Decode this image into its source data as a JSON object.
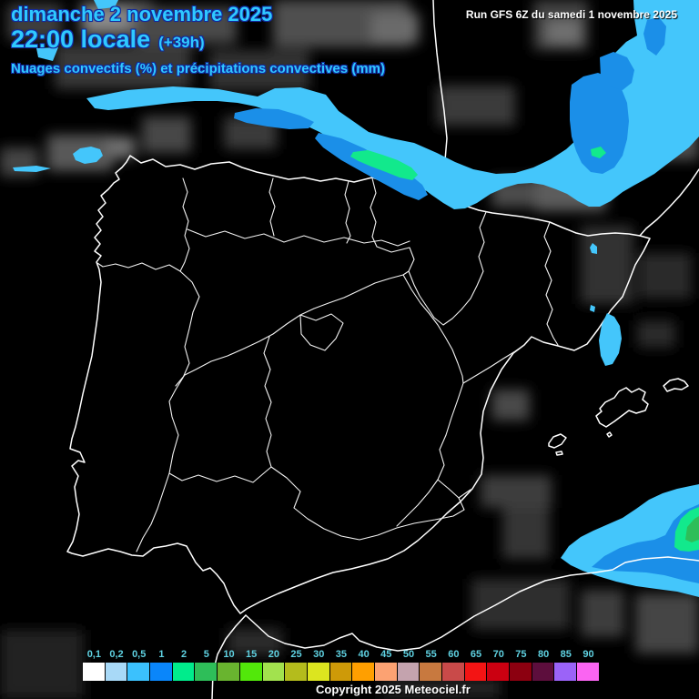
{
  "header": {
    "date_line": "dimanche 2 novembre 2025",
    "time_line": "22:00 locale",
    "offset_label": "(+39h)",
    "subtitle": "Nuages convectifs (%) et précipitations convectives (mm)"
  },
  "run_info": {
    "label": "Run GFS 6Z du samedi 1 novembre 2025"
  },
  "footer": {
    "copyright": "Copyright 2025 Meteociel.fr"
  },
  "legend": {
    "scale": [
      {
        "label": "0,1",
        "color": "#FFFFFF"
      },
      {
        "label": "0,2",
        "color": "#A8D9F7"
      },
      {
        "label": "0,5",
        "color": "#3BC1FD"
      },
      {
        "label": "1",
        "color": "#0A86FA"
      },
      {
        "label": "2",
        "color": "#00EC8C"
      },
      {
        "label": "5",
        "color": "#2EBE59"
      },
      {
        "label": "10",
        "color": "#69B42F"
      },
      {
        "label": "15",
        "color": "#52E80A"
      },
      {
        "label": "20",
        "color": "#A2E24E"
      },
      {
        "label": "25",
        "color": "#B4BC1C"
      },
      {
        "label": "30",
        "color": "#DCE51F"
      },
      {
        "label": "35",
        "color": "#CE9A08"
      },
      {
        "label": "40",
        "color": "#FF9F00"
      },
      {
        "label": "45",
        "color": "#FCA272"
      },
      {
        "label": "50",
        "color": "#C4A3AE"
      },
      {
        "label": "55",
        "color": "#C8793F"
      },
      {
        "label": "60",
        "color": "#C94A49"
      },
      {
        "label": "65",
        "color": "#F31414"
      },
      {
        "label": "70",
        "color": "#CB0011"
      },
      {
        "label": "75",
        "color": "#8C0010"
      },
      {
        "label": "80",
        "color": "#5D0E3D"
      },
      {
        "label": "85",
        "color": "#9B63F8"
      },
      {
        "label": "90",
        "color": "#FA64F2"
      }
    ]
  },
  "map_colors": {
    "background": "#000000",
    "coastline": "#FFFFFF",
    "precip_light": "#44C6FB",
    "precip_moderate": "#1B8FE8",
    "precip_heavy": "#12E98C",
    "precip_intense": "#2EBE59",
    "header_text": "#2FC9FF",
    "legend_label_text": "#5FD2E2"
  }
}
